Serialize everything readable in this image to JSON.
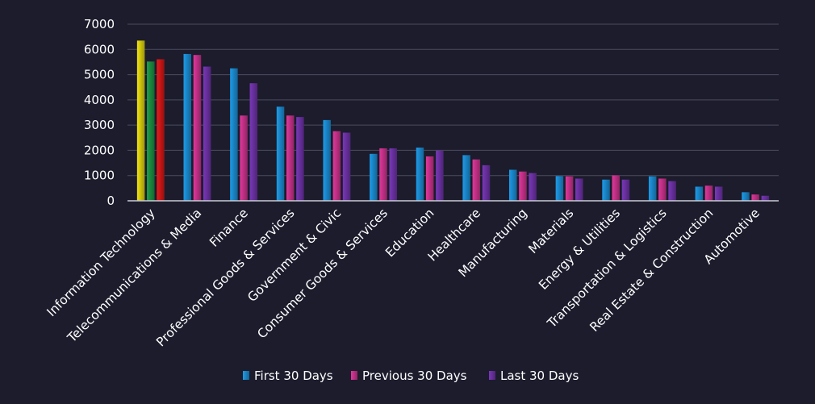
{
  "chart_data": {
    "type": "bar",
    "title": "",
    "xlabel": "",
    "ylabel": "",
    "ylim": [
      0,
      7000
    ],
    "yticks": [
      0,
      1000,
      2000,
      3000,
      4000,
      5000,
      6000,
      7000
    ],
    "grid": true,
    "legend_position": "bottom",
    "categories": [
      "Information Technology",
      "Telecommunications & Media",
      "Finance",
      "Professional Goods & Services",
      "Government & Civic",
      "Consumer Goods &  Services",
      "Education",
      "Healthcare",
      "Manufacturing",
      "Materials",
      "Energy & Utilities",
      "Transportation & Logistics",
      "Real Estate & Construction",
      "Automotive"
    ],
    "series": [
      {
        "name": "First 30 Days",
        "color": "#1e9be8",
        "values": [
          6350,
          5820,
          5250,
          3730,
          3200,
          1860,
          2110,
          1810,
          1230,
          980,
          840,
          970,
          560,
          340
        ]
      },
      {
        "name": "Previous 30 Days",
        "color": "#e0389c",
        "values": [
          5520,
          5780,
          3380,
          3380,
          2760,
          2080,
          1760,
          1640,
          1160,
          970,
          1010,
          880,
          600,
          250
        ]
      },
      {
        "name": "Last 30 Days",
        "color": "#7a38b8",
        "values": [
          5610,
          5320,
          4660,
          3320,
          2700,
          2080,
          1990,
          1410,
          1100,
          880,
          840,
          780,
          560,
          200
        ]
      }
    ],
    "highlight": {
      "category_index": 0,
      "colors": [
        "#f2e60f",
        "#1ea04a",
        "#e81a1a"
      ]
    }
  }
}
